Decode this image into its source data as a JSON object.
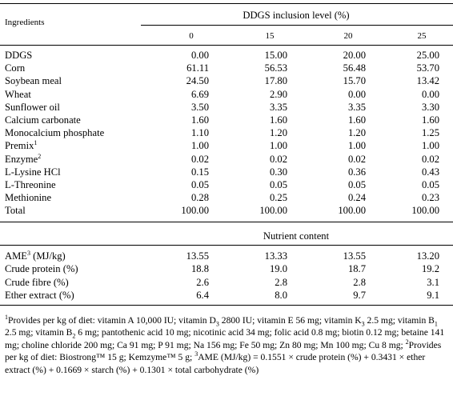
{
  "table": {
    "ingredients_header": "Ingredients",
    "group_header": "DDGS inclusion level (%)",
    "levels": [
      "0",
      "15",
      "20",
      "25"
    ],
    "ingredient_rows": [
      {
        "name": "DDGS",
        "sup": "",
        "values": [
          "0.00",
          "15.00",
          "20.00",
          "25.00"
        ]
      },
      {
        "name": "Corn",
        "sup": "",
        "values": [
          "61.11",
          "56.53",
          "56.48",
          "53.70"
        ]
      },
      {
        "name": "Soybean meal",
        "sup": "",
        "values": [
          "24.50",
          "17.80",
          "15.70",
          "13.42"
        ]
      },
      {
        "name": "Wheat",
        "sup": "",
        "values": [
          "6.69",
          "2.90",
          "0.00",
          "0.00"
        ]
      },
      {
        "name": "Sunflower oil",
        "sup": "",
        "values": [
          "3.50",
          "3.35",
          "3.35",
          "3.30"
        ]
      },
      {
        "name": "Calcium carbonate",
        "sup": "",
        "values": [
          "1.60",
          "1.60",
          "1.60",
          "1.60"
        ]
      },
      {
        "name": "Monocalcium phosphate",
        "sup": "",
        "values": [
          "1.10",
          "1.20",
          "1.20",
          "1.25"
        ]
      },
      {
        "name": "Premix",
        "sup": "1",
        "values": [
          "1.00",
          "1.00",
          "1.00",
          "1.00"
        ]
      },
      {
        "name": "Enzyme",
        "sup": "2",
        "values": [
          "0.02",
          "0.02",
          "0.02",
          "0.02"
        ]
      },
      {
        "name": "L-Lysine HCl",
        "sup": "",
        "values": [
          "0.15",
          "0.30",
          "0.36",
          "0.43"
        ]
      },
      {
        "name": "L-Threonine",
        "sup": "",
        "values": [
          "0.05",
          "0.05",
          "0.05",
          "0.05"
        ]
      },
      {
        "name": "Methionine",
        "sup": "",
        "values": [
          "0.28",
          "0.25",
          "0.24",
          "0.23"
        ]
      },
      {
        "name": "Total",
        "sup": "",
        "values": [
          "100.00",
          "100.00",
          "100.00",
          "100.00"
        ]
      }
    ],
    "nutrient_header": "Nutrient content",
    "nutrient_rows": [
      {
        "name": "AME",
        "sup": "3",
        "suffix": " (MJ/kg)",
        "values": [
          "13.55",
          "13.33",
          "13.55",
          "13.20"
        ]
      },
      {
        "name": "Crude protein (%)",
        "sup": "",
        "suffix": "",
        "values": [
          "18.8",
          "19.0",
          "18.7",
          "19.2"
        ]
      },
      {
        "name": "Crude fibre (%)",
        "sup": "",
        "suffix": "",
        "values": [
          "2.6",
          "2.8",
          "2.8",
          "3.1"
        ]
      },
      {
        "name": "Ether extract (%)",
        "sup": "",
        "suffix": "",
        "values": [
          "6.4",
          "8.0",
          "9.7",
          "9.1"
        ]
      }
    ]
  },
  "footnote": {
    "p1": "Provides per kg of diet: vitamin A 10,000 IU; vitamin D",
    "d3sub": "3",
    "p2": " 2800 IU; vitamin E 56 mg; vitamin K",
    "k3sub": "3",
    "p3": " 2.5 mg; vitamin B",
    "b1sub": "1",
    "p4": " 2.5 mg; vitamin B",
    "b2sub": "2",
    "p5": " 6 mg; pantothenic acid 10 mg; nicotinic acid 34 mg; folic acid 0.8 mg; biotin 0.12 mg; betaine 141 mg; choline chloride 200 mg; Ca 91 mg; P 91 mg; Na 156 mg; Fe 50 mg; Zn 80 mg; Mn 100 mg; Cu 8 mg; ",
    "p6": "Provides per kg of diet: Biostrong™ 15 g; Kemzyme™ 5 g; ",
    "p7": "AME (MJ/kg) = 0.1551 × crude protein (%) + 0.3431 × ether extract (%) + 0.1669 × starch (%) + 0.1301 × total carbohydrate (%)",
    "sup1": "1",
    "sup2": "2",
    "sup3": "3"
  }
}
